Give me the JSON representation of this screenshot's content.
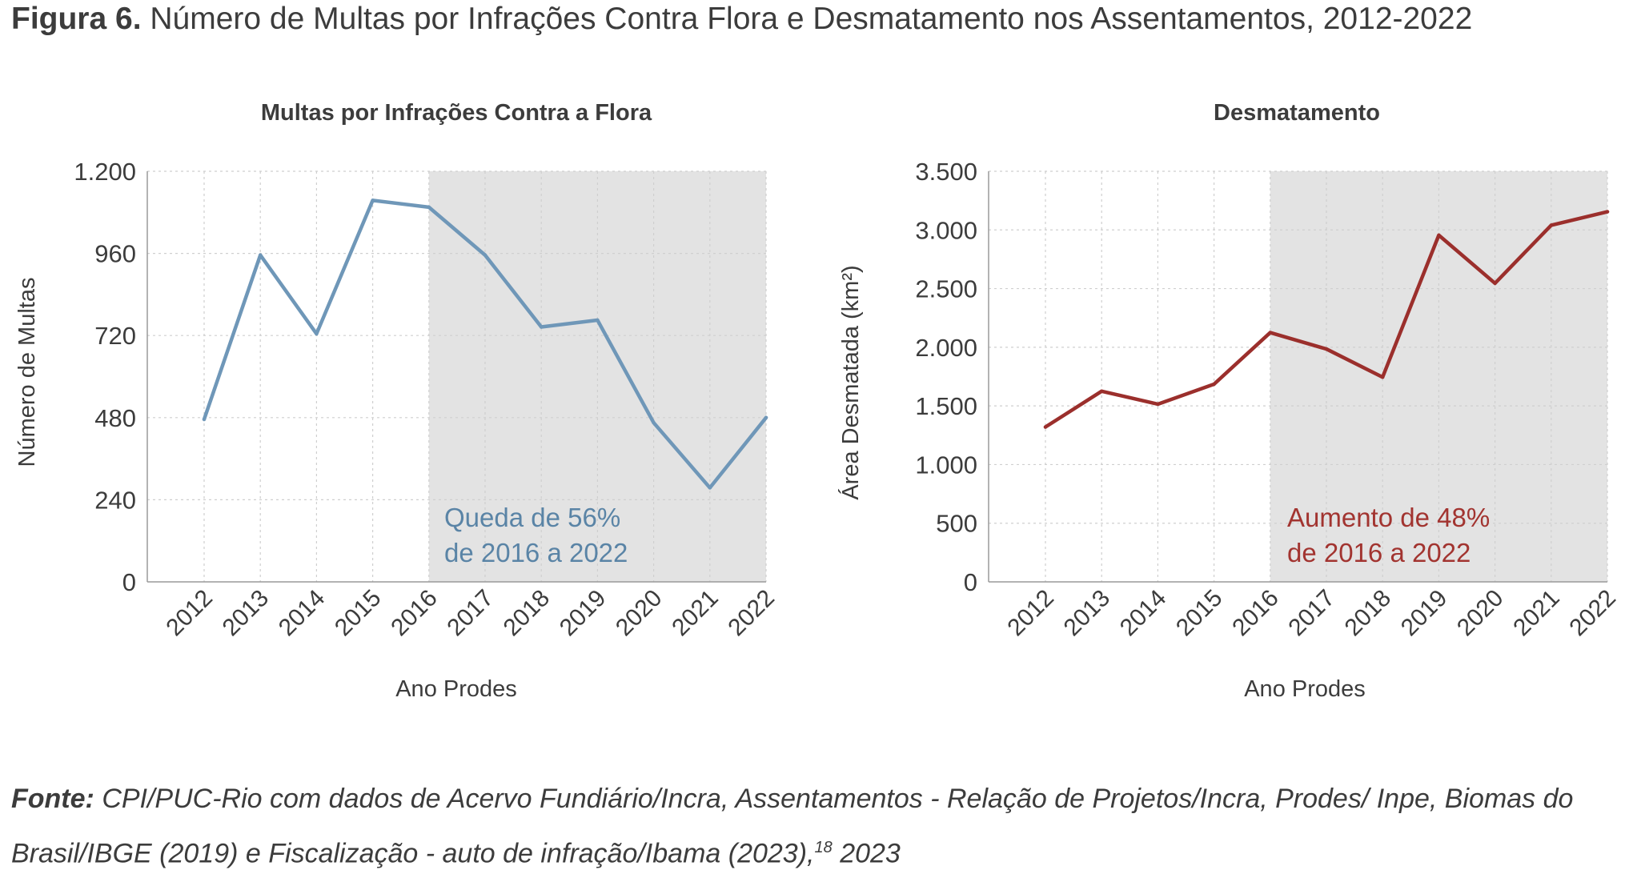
{
  "figure": {
    "label": "Figura 6.",
    "title": "Número de Multas por Infrações Contra Flora e Desmatamento nos Assentamentos, 2012-2022"
  },
  "source": {
    "label": "Fonte:",
    "text": "CPI/PUC-Rio com dados de Acervo Fundiário/Incra, Assentamentos - Relação de Projetos/Incra, Prodes/ Inpe, Biomas do Brasil/IBGE (2019) e Fiscalização - auto de infração/Ibama (2023),",
    "footnote": "18",
    "year": "2023"
  },
  "chart_data": [
    {
      "type": "line",
      "title": "Multas por Infrações Contra a Flora",
      "xlabel": "Ano Prodes",
      "ylabel": "Número de Multas",
      "categories": [
        "2012",
        "2013",
        "2014",
        "2015",
        "2016",
        "2017",
        "2018",
        "2019",
        "2020",
        "2021",
        "2022"
      ],
      "series": [
        {
          "values": [
            475,
            955,
            725,
            1115,
            1095,
            955,
            745,
            765,
            465,
            275,
            480
          ]
        }
      ],
      "ylim": [
        0,
        1200
      ],
      "yticks": [
        0,
        240,
        480,
        720,
        960,
        1200
      ],
      "ytick_labels": [
        "0",
        "240",
        "480",
        "720",
        "960",
        "1.200"
      ],
      "highlight_range": [
        "2016",
        "2022"
      ],
      "annotation": [
        "Queda de 56%",
        "de 2016 a 2022"
      ],
      "grid": true,
      "color": "#6f97b8",
      "annotation_color": "#5a84a6",
      "shade_color": "#e3e3e3"
    },
    {
      "type": "line",
      "title": "Desmatamento",
      "xlabel": "Ano Prodes",
      "ylabel": "Área Desmatada (km²)",
      "categories": [
        "2012",
        "2013",
        "2014",
        "2015",
        "2016",
        "2017",
        "2018",
        "2019",
        "2020",
        "2021",
        "2022"
      ],
      "series": [
        {
          "values": [
            1320,
            1625,
            1515,
            1685,
            2125,
            1985,
            1745,
            2955,
            2545,
            3040,
            3155
          ]
        }
      ],
      "ylim": [
        0,
        3500
      ],
      "yticks": [
        0,
        500,
        1000,
        1500,
        2000,
        2500,
        3000,
        3500
      ],
      "ytick_labels": [
        "0",
        "500",
        "1.000",
        "1.500",
        "2.000",
        "2.500",
        "3.000",
        "3.500"
      ],
      "highlight_range": [
        "2016",
        "2022"
      ],
      "annotation": [
        "Aumento de 48%",
        "de 2016 a 2022"
      ],
      "grid": true,
      "color": "#9b2f2c",
      "annotation_color": "#a23430",
      "shade_color": "#e3e3e3"
    }
  ]
}
